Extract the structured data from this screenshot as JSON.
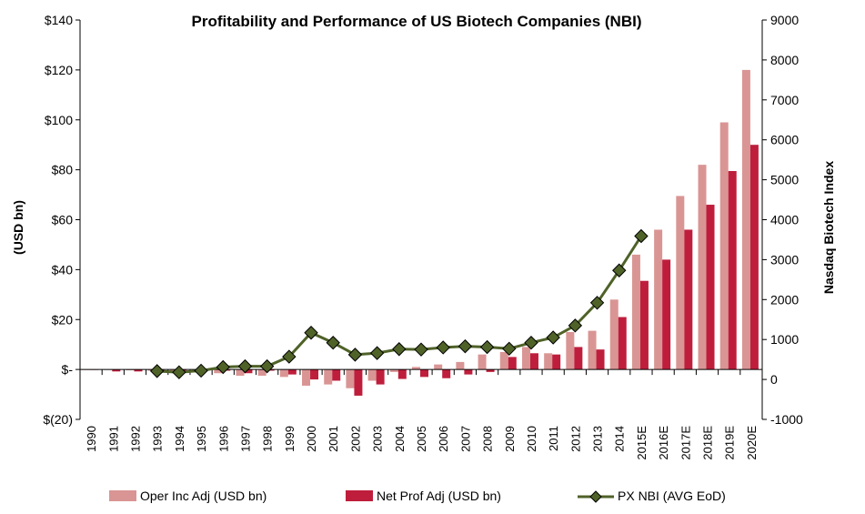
{
  "chart_data": {
    "type": "bar+line",
    "title": "Profitability and Performance of US Biotech Companies (NBI)",
    "ylabel": "(USD bn)",
    "y2label": "Nasdaq Biotech Index",
    "ylim": [
      -20,
      140
    ],
    "y2lim": [
      -1000,
      9000
    ],
    "yticks": [
      "$(20)",
      "$-",
      "$20",
      "$40",
      "$60",
      "$80",
      "$100",
      "$120",
      "$140"
    ],
    "y2ticks": [
      "-1000",
      "0",
      "1000",
      "2000",
      "3000",
      "4000",
      "5000",
      "6000",
      "7000",
      "8000",
      "9000"
    ],
    "categories": [
      "1990",
      "1991",
      "1992",
      "1993",
      "1994",
      "1995",
      "1996",
      "1997",
      "1998",
      "1999",
      "2000",
      "2001",
      "2002",
      "2003",
      "2004",
      "2005",
      "2006",
      "2007",
      "2008",
      "2009",
      "2010",
      "2011",
      "2012",
      "2013",
      "2014",
      "2015E",
      "2016E",
      "2017E",
      "2018E",
      "2019E",
      "2020E"
    ],
    "series": [
      {
        "name": "Oper Inc Adj (USD bn)",
        "type": "bar",
        "axis": "left",
        "color": "#d99594",
        "values": [
          -0.2,
          -0.2,
          -0.3,
          -0.5,
          -1,
          -0.8,
          -1.5,
          -2.5,
          -2.5,
          -3,
          -6.5,
          -6,
          -7.5,
          -4.5,
          -1,
          1,
          2,
          3,
          6,
          7,
          9,
          6.5,
          15,
          15.5,
          28,
          46,
          56,
          69.5,
          82,
          99,
          120
        ]
      },
      {
        "name": "Net Prof Adj (USD bn)",
        "type": "bar",
        "axis": "left",
        "color": "#be1e3c",
        "values": [
          0,
          -0.8,
          -0.8,
          -1,
          -0.5,
          -0.3,
          -0.5,
          -1.5,
          -0.5,
          -2,
          -4,
          -4.5,
          -10.5,
          -6,
          -3.8,
          -3,
          -3.5,
          -2,
          -1,
          5,
          6.5,
          6,
          9,
          8,
          21,
          35.5,
          44,
          56,
          66,
          79.5,
          90
        ]
      },
      {
        "name": "PX NBI (AVG EoD)",
        "type": "line",
        "axis": "right",
        "color": "#4f6228",
        "values": [
          null,
          null,
          null,
          210,
          180,
          220,
          310,
          330,
          330,
          570,
          1170,
          920,
          620,
          660,
          760,
          750,
          800,
          830,
          810,
          770,
          920,
          1050,
          1350,
          1920,
          2730,
          3590,
          null,
          null,
          null,
          null,
          null
        ]
      }
    ],
    "legend": "bottom",
    "grid": false
  }
}
